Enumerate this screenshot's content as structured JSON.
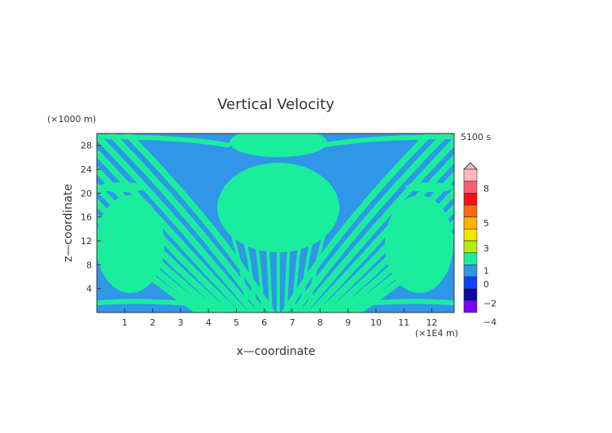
{
  "chart_data": {
    "type": "heatmap",
    "title": "Vertical Velocity",
    "time_label": "5100 s",
    "xlabel": "x—coordinate",
    "ylabel": "z—coordinate",
    "x_unit": "(×1E4 m)",
    "y_unit": "(×1000 m)",
    "xlim": [
      0,
      12.8
    ],
    "ylim": [
      0,
      30
    ],
    "x_ticks": [
      1,
      2,
      3,
      4,
      5,
      6,
      7,
      8,
      9,
      10,
      11,
      12
    ],
    "y_ticks": [
      4,
      8,
      12,
      16,
      20,
      24,
      28
    ],
    "grid": false,
    "colors": {
      "background_field": "#2f96e8",
      "positive_band": "#1aee9e",
      "frame": "#333333"
    },
    "colorbar": {
      "tick_labels": [
        "8",
        "5",
        "3",
        "1",
        "0",
        "−2",
        "−4"
      ],
      "levels_top_to_bottom": [
        {
          "color": "#ffb6c6"
        },
        {
          "color": "#ff5f6e"
        },
        {
          "color": "#ff1010"
        },
        {
          "color": "#ff6a12"
        },
        {
          "color": "#ffb000"
        },
        {
          "color": "#f2e600"
        },
        {
          "color": "#b0ee10"
        },
        {
          "color": "#1aee9e"
        },
        {
          "color": "#2f96e8"
        },
        {
          "color": "#1040ff"
        },
        {
          "color": "#0a0aa0"
        },
        {
          "color": "#7a00ff"
        }
      ]
    }
  }
}
